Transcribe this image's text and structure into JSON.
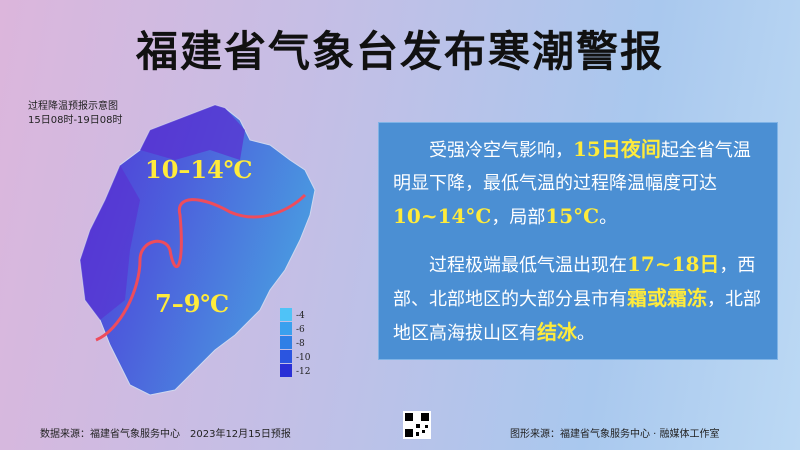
{
  "header": {
    "title": "福建省气象台发布寒潮警报"
  },
  "map": {
    "caption": [
      "过程降温预报示意图",
      "15日08时-19日08时"
    ],
    "labels": [
      "10–14℃",
      "7–9℃"
    ],
    "legend": [
      {
        "label": "-4",
        "color": "#4fc3f7"
      },
      {
        "label": "-6",
        "color": "#3aa0ee"
      },
      {
        "label": "-8",
        "color": "#2f7fe6"
      },
      {
        "label": "-10",
        "color": "#2b55e0"
      },
      {
        "label": "-12",
        "color": "#2a2fd6"
      }
    ]
  },
  "panel": {
    "paragraphs": [
      [
        {
          "text": "受强冷空气影响，"
        },
        {
          "text": "15日夜间",
          "highlight": true
        },
        {
          "text": "起全省气温明显下降，最低气温的过程降温幅度可达"
        },
        {
          "text": "10~14°C",
          "highlight": true
        },
        {
          "text": "，局部"
        },
        {
          "text": "15°C",
          "highlight": true
        },
        {
          "text": "。"
        }
      ],
      [
        {
          "text": "过程极端最低气温出现在"
        },
        {
          "text": "17~18日",
          "highlight": true
        },
        {
          "text": "，西部、北部地区的大部分县市有"
        },
        {
          "text": "霜或霜冻",
          "highlight": true
        },
        {
          "text": "，北部地区高海拔山区有"
        },
        {
          "text": "结冰",
          "highlight": true
        },
        {
          "text": "。"
        }
      ]
    ]
  },
  "footer": {
    "left": "数据来源：福建省气象服务中心　2023年12月15日预报",
    "right": "图形来源：福建省气象服务中心 · 融媒体工作室"
  }
}
